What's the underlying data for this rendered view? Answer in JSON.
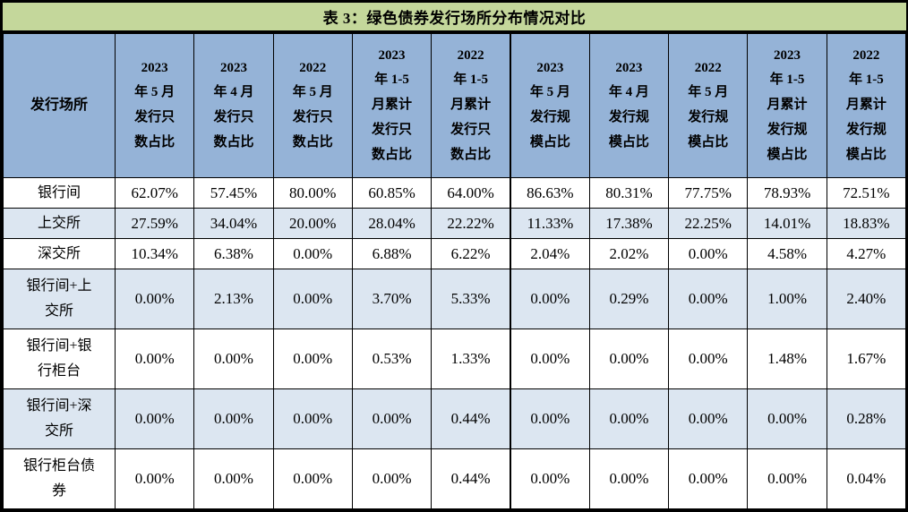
{
  "title": "表 3：绿色债券发行场所分布情况对比",
  "colors": {
    "title_bg": "#c4d79b",
    "header_bg": "#95b3d7",
    "stripe_bg": "#dce6f1",
    "border": "#000000",
    "text": "#000000"
  },
  "table": {
    "row_header": "发行场所",
    "columns": [
      "2023\n年 5 月\n发行只\n数占比",
      "2023\n年 4 月\n发行只\n数占比",
      "2022\n年 5 月\n发行只\n数占比",
      "2023\n年 1-5\n月累计\n发行只\n数占比",
      "2022\n年 1-5\n月累计\n发行只\n数占比",
      "2023\n年 5 月\n发行规\n模占比",
      "2023\n年 4 月\n发行规\n模占比",
      "2022\n年 5 月\n发行规\n模占比",
      "2023\n年 1-5\n月累计\n发行规\n模占比",
      "2022\n年 1-5\n月累计\n发行规\n模占比"
    ],
    "rows": [
      {
        "label": "银行间",
        "values": [
          "62.07%",
          "57.45%",
          "80.00%",
          "60.85%",
          "64.00%",
          "86.63%",
          "80.31%",
          "77.75%",
          "78.93%",
          "72.51%"
        ]
      },
      {
        "label": "上交所",
        "values": [
          "27.59%",
          "34.04%",
          "20.00%",
          "28.04%",
          "22.22%",
          "11.33%",
          "17.38%",
          "22.25%",
          "14.01%",
          "18.83%"
        ]
      },
      {
        "label": "深交所",
        "values": [
          "10.34%",
          "6.38%",
          "0.00%",
          "6.88%",
          "6.22%",
          "2.04%",
          "2.02%",
          "0.00%",
          "4.58%",
          "4.27%"
        ]
      },
      {
        "label": "银行间+上\n交所",
        "values": [
          "0.00%",
          "2.13%",
          "0.00%",
          "3.70%",
          "5.33%",
          "0.00%",
          "0.29%",
          "0.00%",
          "1.00%",
          "2.40%"
        ]
      },
      {
        "label": "银行间+银\n行柜台",
        "values": [
          "0.00%",
          "0.00%",
          "0.00%",
          "0.53%",
          "1.33%",
          "0.00%",
          "0.00%",
          "0.00%",
          "1.48%",
          "1.67%"
        ]
      },
      {
        "label": "银行间+深\n交所",
        "values": [
          "0.00%",
          "0.00%",
          "0.00%",
          "0.00%",
          "0.44%",
          "0.00%",
          "0.00%",
          "0.00%",
          "0.00%",
          "0.28%"
        ]
      },
      {
        "label": "银行柜台债\n券",
        "values": [
          "0.00%",
          "0.00%",
          "0.00%",
          "0.00%",
          "0.44%",
          "0.00%",
          "0.00%",
          "0.00%",
          "0.00%",
          "0.04%"
        ]
      }
    ]
  }
}
